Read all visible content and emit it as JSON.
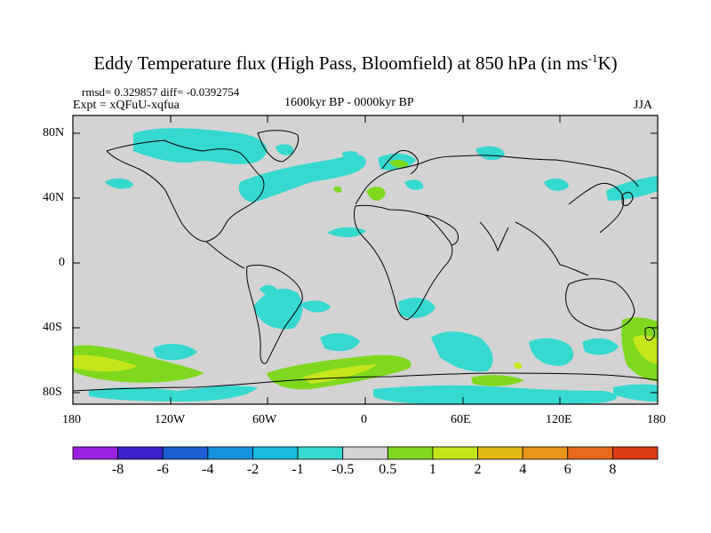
{
  "title": {
    "main": "Eddy Temperature flux (High Pass, Bloomfield) at 850 hPa (in ms",
    "sup": "-1",
    "unit_end": "K)"
  },
  "stats": {
    "rmsd_diff": "rmsd= 0.329857 diff= -0.0392754"
  },
  "experiment": "Expt = xQFuU-xqfua",
  "period": "1600kyr BP - 0000kyr BP",
  "season": "JJA",
  "axes": {
    "lat_ticks": [
      "80N",
      "40N",
      "0",
      "40S",
      "80S"
    ],
    "lon_ticks": [
      "180",
      "120W",
      "60W",
      "0",
      "60E",
      "120E",
      "180"
    ]
  },
  "colorbar": {
    "labels": [
      "-8",
      "-6",
      "-4",
      "-2",
      "-1",
      "-0.5",
      "0.5",
      "1",
      "2",
      "4",
      "6",
      "8"
    ],
    "colors": [
      "#9a20e0",
      "#3c22cc",
      "#1b5fd2",
      "#1691df",
      "#19bcdc",
      "#35d9d0",
      "#d3d3d3",
      "#7fd81e",
      "#c6e61c",
      "#e3b812",
      "#e89418",
      "#e66a1a",
      "#dc3a14"
    ]
  },
  "colors": {
    "land_ocean_background": "#d3d3d3",
    "coastline": "#000000",
    "neg_light": "#35d9d0",
    "neg_mid": "#19bcdc",
    "pos_light": "#7fd81e",
    "pos_mid": "#c6e61c",
    "pos_strong": "#e3b812"
  }
}
